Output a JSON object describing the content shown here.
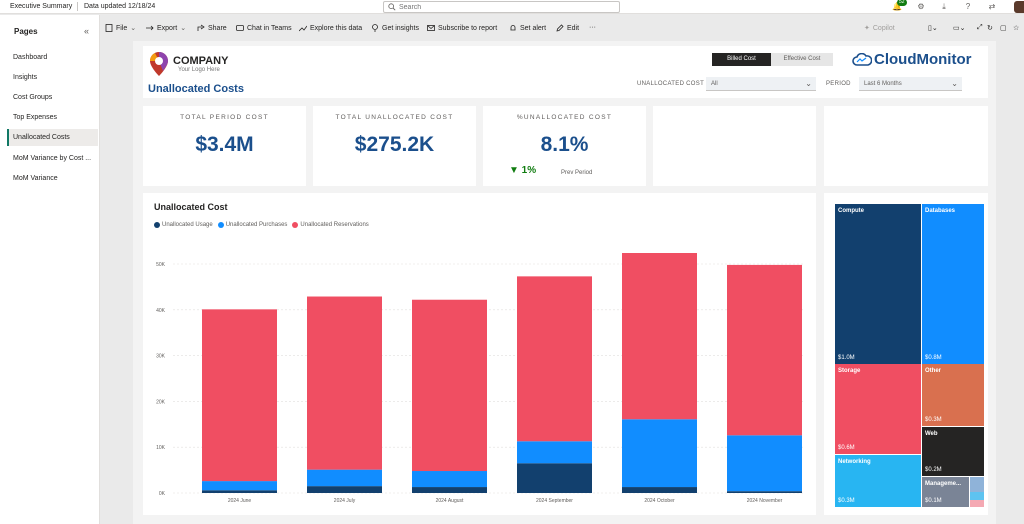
{
  "topbar": {
    "title": "Executive Summary",
    "updated": "Data updated 12/18/24",
    "search_placeholder": "Search",
    "notification_count": "52"
  },
  "actions": {
    "file": "File",
    "export": "Export",
    "share": "Share",
    "chat": "Chat in Teams",
    "explore": "Explore this data",
    "insights": "Get insights",
    "subscribe": "Subscribe to report",
    "alert": "Set alert",
    "edit": "Edit",
    "more": "···",
    "copilot": "Copilot"
  },
  "pages": {
    "title": "Pages",
    "items": [
      {
        "label": "Dashboard"
      },
      {
        "label": "Insights"
      },
      {
        "label": "Cost Groups"
      },
      {
        "label": "Top Expenses"
      },
      {
        "label": "Unallocated Costs"
      },
      {
        "label": "MoM Variance by Cost ..."
      },
      {
        "label": "MoM Variance"
      }
    ]
  },
  "header": {
    "company": "COMPANY",
    "logo_sub": "Your Logo Here",
    "report_title": "Unallocated Costs",
    "toggle_on": "Billed Cost",
    "toggle_off": "Effective Cost",
    "brand": "CloudMonitor",
    "slicer_unallocated_label": "UNALLOCATED COST",
    "slicer_unallocated_value": "All",
    "slicer_period_label": "PERIOD",
    "slicer_period_value": "Last 6 Months"
  },
  "kpis": {
    "total_period": {
      "label": "TOTAL PERIOD COST",
      "value": "$3.4M"
    },
    "total_unallocated": {
      "label": "TOTAL UNALLOCATED COST",
      "value": "$275.2K"
    },
    "pct_unallocated": {
      "label": "%UNALLOCATED COST",
      "value": "8.1%",
      "delta": "▼ 1%",
      "delta_label": "Prev Period"
    }
  },
  "colors": {
    "usage": "#12406e",
    "purchases": "#118dff",
    "reservations": "#f04e62",
    "title_blue": "#1b4f8c"
  },
  "chart_data": {
    "type": "bar",
    "title": "Unallocated Cost",
    "categories": [
      "2024 June",
      "2024 July",
      "2024 August",
      "2024 September",
      "2024 October",
      "2024 November"
    ],
    "series": [
      {
        "name": "Unallocated Usage",
        "values": [
          600,
          1500,
          1300,
          6500,
          1300,
          400
        ]
      },
      {
        "name": "Unallocated Purchases",
        "values": [
          2000,
          3600,
          3500,
          4800,
          14800,
          12200
        ]
      },
      {
        "name": "Unallocated Reservations",
        "values": [
          37500,
          37800,
          37400,
          36000,
          36300,
          37200
        ]
      }
    ],
    "y_ticks": [
      "0K",
      "10K",
      "20K",
      "30K",
      "40K",
      "50K"
    ],
    "ylim": [
      0,
      50000
    ],
    "stacked": true,
    "grid": true
  },
  "treemap": [
    {
      "name": "Compute",
      "value": "$1.0M",
      "color": "#12406e"
    },
    {
      "name": "Databases",
      "value": "$0.8M",
      "color": "#118dff"
    },
    {
      "name": "Storage",
      "value": "$0.6M",
      "color": "#f04e62"
    },
    {
      "name": "Other",
      "value": "$0.3M",
      "color": "#d9704f"
    },
    {
      "name": "Web",
      "value": "$0.2M",
      "color": "#252423"
    },
    {
      "name": "Networking",
      "value": "$0.3M",
      "color": "#28b5f2"
    },
    {
      "name": "Manageme...",
      "value": "$0.1M",
      "color": "#7a8496"
    }
  ]
}
